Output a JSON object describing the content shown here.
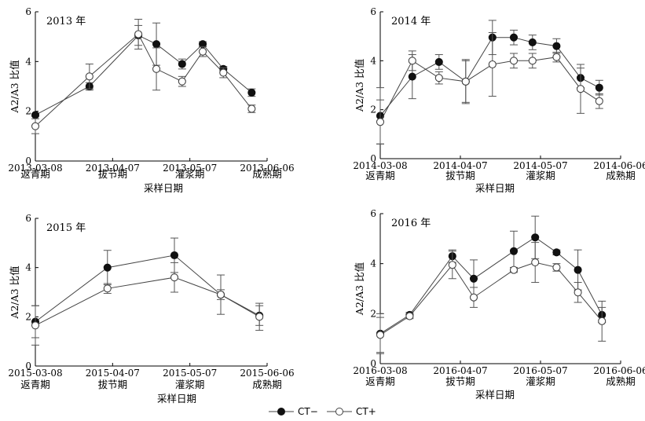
{
  "legend": {
    "ct_minus": "CT−",
    "ct_plus": "CT+"
  },
  "chart_data": [
    {
      "type": "line",
      "title": "2013 年",
      "ylabel": "A2/A3 比值",
      "xlabel": "采样日期",
      "ylim": [
        0,
        6
      ],
      "yticks": [
        "0",
        "2",
        "4",
        "6"
      ],
      "x_ticks": [
        "2013-03-08",
        "2013-04-07",
        "2013-05-07",
        "2013-06-06"
      ],
      "x_tick_days": [
        0,
        30,
        60,
        90
      ],
      "stages": [
        "返青期",
        "拔节期",
        "灌浆期",
        "成熟期"
      ],
      "x_days": [
        0,
        21,
        40,
        47,
        57,
        65,
        73,
        84
      ],
      "series": [
        {
          "name": "CT−",
          "values": [
            1.85,
            3.0,
            5.05,
            4.7,
            3.9,
            4.7,
            3.7,
            2.75
          ],
          "err": [
            0.05,
            0.15,
            0.4,
            0.85,
            0.2,
            0.1,
            0.1,
            0.15
          ]
        },
        {
          "name": "CT+",
          "values": [
            1.4,
            3.4,
            5.1,
            3.7,
            3.2,
            4.4,
            3.55,
            2.1
          ],
          "err": [
            0.3,
            0.5,
            0.6,
            0.85,
            0.2,
            0.2,
            0.2,
            0.15
          ]
        }
      ]
    },
    {
      "type": "line",
      "title": "2014 年",
      "ylabel": "A2/A3 比值",
      "xlabel": "采样日期",
      "ylim": [
        0,
        6
      ],
      "yticks": [
        "0",
        "2",
        "4",
        "6"
      ],
      "x_ticks": [
        "2014-03-08",
        "2014-04-07",
        "2014-05-07",
        "2014-06-06"
      ],
      "x_tick_days": [
        0,
        30,
        60,
        90
      ],
      "stages": [
        "返青期",
        "拔节期",
        "灌浆期",
        "成熟期"
      ],
      "x_days": [
        0,
        12,
        22,
        32,
        42,
        50,
        57,
        66,
        75,
        82
      ],
      "series": [
        {
          "name": "CT−",
          "values": [
            1.75,
            3.35,
            3.95,
            3.15,
            4.95,
            4.95,
            4.75,
            4.6,
            3.3,
            2.9
          ],
          "err": [
            1.15,
            0.9,
            0.3,
            0.9,
            0.7,
            0.3,
            0.3,
            0.3,
            0.4,
            0.3
          ]
        },
        {
          "name": "CT+",
          "values": [
            1.5,
            4.0,
            3.3,
            3.15,
            3.85,
            4.0,
            4.0,
            4.15,
            2.85,
            2.35
          ],
          "err": [
            0.9,
            0.4,
            0.25,
            0.85,
            1.3,
            0.3,
            0.3,
            0.2,
            1.0,
            0.3
          ]
        }
      ]
    },
    {
      "type": "line",
      "title": "2015 年",
      "ylabel": "A2/A3 比值",
      "xlabel": "采样日期",
      "ylim": [
        0,
        6
      ],
      "yticks": [
        "0",
        "2",
        "4",
        "6"
      ],
      "x_ticks": [
        "2015-03-08",
        "2015-04-07",
        "2015-05-07",
        "2015-06-06"
      ],
      "x_tick_days": [
        0,
        30,
        60,
        90
      ],
      "stages": [
        "返青期",
        "拔节期",
        "灌浆期",
        "成熟期"
      ],
      "x_days": [
        0,
        28,
        54,
        72,
        87
      ],
      "series": [
        {
          "name": "CT−",
          "values": [
            1.8,
            4.0,
            4.5,
            2.9,
            2.05
          ],
          "err": [
            0.65,
            0.7,
            0.7,
            0.8,
            0.4
          ]
        },
        {
          "name": "CT+",
          "values": [
            1.65,
            3.15,
            3.6,
            2.9,
            2.0
          ],
          "err": [
            0.8,
            0.2,
            0.6,
            0.2,
            0.55
          ]
        }
      ]
    },
    {
      "type": "line",
      "title": "2016 年",
      "ylabel": "A2/A3 比值",
      "xlabel": "采样日期",
      "ylim": [
        0,
        6
      ],
      "yticks": [
        "0",
        "2",
        "4",
        "6"
      ],
      "x_ticks": [
        "2016-03-08",
        "2016-04-07",
        "2016-05-07",
        "2016-06-06"
      ],
      "x_tick_days": [
        0,
        30,
        60,
        90
      ],
      "stages": [
        "返青期",
        "拔节期",
        "灌浆期",
        "成熟期"
      ],
      "x_days": [
        0,
        11,
        27,
        35,
        50,
        58,
        66,
        74,
        83
      ],
      "series": [
        {
          "name": "CT−",
          "values": [
            1.2,
            1.95,
            4.3,
            3.4,
            4.5,
            5.05,
            4.45,
            3.75,
            1.95
          ],
          "err": [
            0.8,
            0.1,
            0.25,
            0.75,
            0.8,
            0.85,
            0.1,
            0.8,
            0.3
          ]
        },
        {
          "name": "CT+",
          "values": [
            1.15,
            1.9,
            3.95,
            2.65,
            3.75,
            4.05,
            3.85,
            2.85,
            1.7
          ],
          "err": [
            0.7,
            0.1,
            0.55,
            0.4,
            0.1,
            0.8,
            0.15,
            0.4,
            0.8
          ]
        }
      ]
    }
  ]
}
